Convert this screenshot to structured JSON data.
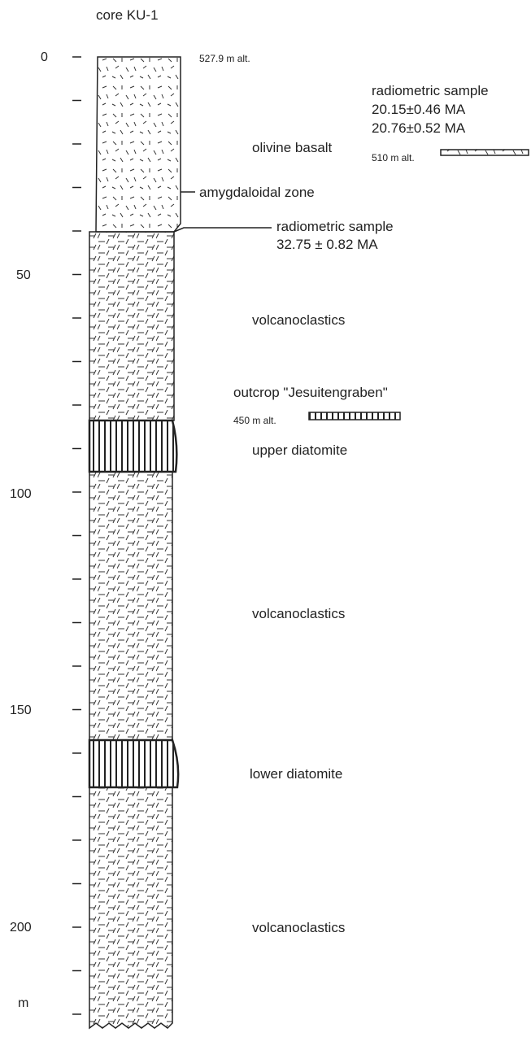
{
  "title": "core KU-1",
  "depth_axis": {
    "labels": [
      "0",
      "50",
      "100",
      "150",
      "200"
    ],
    "unit": "m"
  },
  "top_altitude": "527.9 m alt.",
  "annotations": {
    "basalt_sample": {
      "heading": "radiometric sample",
      "ages": [
        "20.15±0.46 MA",
        "20.76±0.52 MA"
      ],
      "altitude": "510 m alt."
    },
    "amygdaloidal": "amygdaloidal zone",
    "core_sample": {
      "heading": "radiometric sample",
      "age": "32.75 ± 0.82 MA"
    },
    "outcrop": {
      "heading": "outcrop \"Jesuitengraben\"",
      "altitude": "450 m alt."
    }
  },
  "layers": [
    "olivine basalt",
    "volcanoclastics",
    "upper diatomite",
    "volcanoclastics",
    "lower diatomite",
    "volcanoclastics"
  ]
}
